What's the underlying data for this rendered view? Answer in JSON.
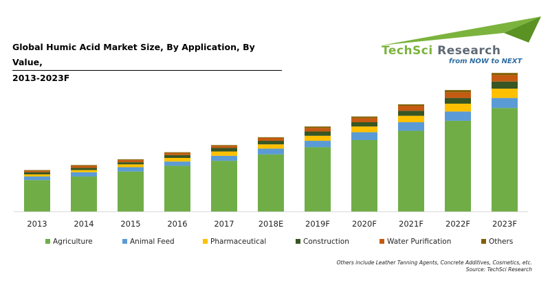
{
  "title": {
    "line1": "Global Humic Acid Market Size, By Application, By Value,",
    "line2": "2013-2023F"
  },
  "logo": {
    "name_part1": "TechSci",
    "name_part2": " Research",
    "tagline": "from NOW to NEXT"
  },
  "footnote": {
    "others": "Others include Leather Tanning Agents, Concrete Additives, Cosmetics, etc.",
    "source": "Source: TechSci Research"
  },
  "colors": {
    "Agriculture": "#70ad47",
    "Animal Feed": "#5b9bd5",
    "Pharmaceutical": "#ffc000",
    "Construction": "#375623",
    "Water Purification": "#c55a11",
    "Others": "#7f6000",
    "axis": "#d9d9d9"
  },
  "chart_data": {
    "type": "bar",
    "stacked": true,
    "categories": [
      "2013",
      "2014",
      "2015",
      "2016",
      "2017",
      "2018E",
      "2019F",
      "2020F",
      "2021F",
      "2022F",
      "2023F"
    ],
    "series": [
      {
        "name": "Agriculture",
        "values": [
          44,
          49,
          56,
          64,
          71,
          80,
          90,
          100,
          113,
          127,
          145
        ]
      },
      {
        "name": "Animal Feed",
        "values": [
          5,
          6,
          6,
          6,
          7,
          8,
          9,
          11,
          12,
          13,
          14
        ]
      },
      {
        "name": "Pharmaceutical",
        "values": [
          3,
          3,
          4,
          5,
          6,
          6,
          7,
          8,
          9,
          11,
          13
        ]
      },
      {
        "name": "Construction",
        "values": [
          3,
          3,
          3,
          4,
          5,
          5,
          6,
          6,
          7,
          8,
          10
        ]
      },
      {
        "name": "Water Purification",
        "values": [
          2,
          3,
          3,
          3,
          3,
          4,
          5,
          6,
          7,
          8,
          9
        ]
      },
      {
        "name": "Others",
        "values": [
          1,
          1,
          1,
          1,
          1,
          1,
          2,
          2,
          2,
          3,
          3
        ]
      }
    ],
    "legend_position": "bottom",
    "grid": false,
    "ylim": [
      0,
      200
    ]
  }
}
